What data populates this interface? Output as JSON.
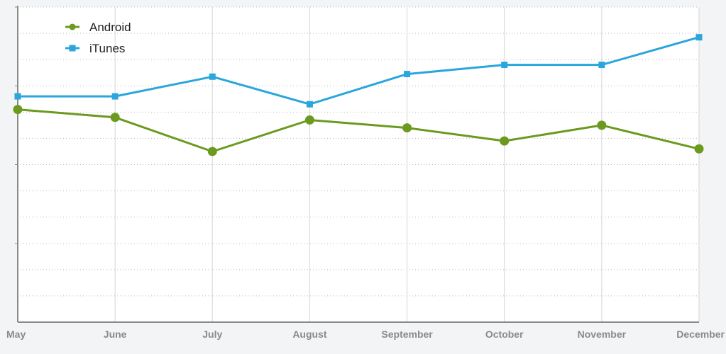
{
  "chart_data": {
    "type": "line",
    "title": "",
    "xlabel": "",
    "ylabel": "",
    "categories": [
      "May",
      "June",
      "July",
      "August",
      "September",
      "October",
      "November",
      "December"
    ],
    "ylim": [
      0,
      12
    ],
    "grid": true,
    "legend_position": "top-left",
    "series": [
      {
        "name": "Android",
        "color": "#6b9a1f",
        "marker": "circle",
        "values": [
          8.1,
          7.8,
          6.5,
          7.7,
          7.4,
          6.9,
          7.5,
          6.6
        ]
      },
      {
        "name": "iTunes",
        "color": "#2aa6dc",
        "marker": "square",
        "values": [
          8.6,
          8.6,
          9.35,
          8.3,
          9.45,
          9.8,
          9.8,
          10.85
        ]
      }
    ]
  }
}
